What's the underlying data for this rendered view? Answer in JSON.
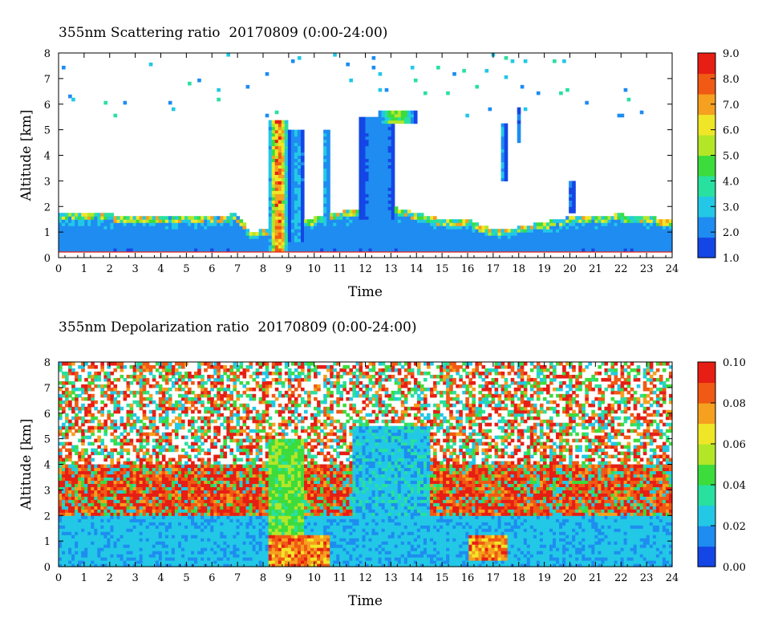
{
  "chart_data": [
    {
      "type": "heatmap",
      "title": "355nm Scattering ratio  20170809 (0:00-24:00)",
      "xlabel": "Time",
      "ylabel": "Altitude [km]",
      "xlim": [
        0,
        24
      ],
      "ylim": [
        0,
        8
      ],
      "x_ticks": [
        "0",
        "1",
        "2",
        "3",
        "4",
        "5",
        "6",
        "7",
        "8",
        "9",
        "10",
        "11",
        "12",
        "13",
        "14",
        "15",
        "16",
        "17",
        "18",
        "19",
        "20",
        "21",
        "22",
        "23",
        "24"
      ],
      "y_ticks": [
        "0",
        "1",
        "2",
        "3",
        "4",
        "5",
        "6",
        "7",
        "8"
      ],
      "colorbar": {
        "range": [
          1.0,
          9.0
        ],
        "ticks": [
          "1.0",
          "2.0",
          "3.0",
          "4.0",
          "5.0",
          "6.0",
          "7.0",
          "8.0",
          "9.0"
        ],
        "colors": [
          "#1446e6",
          "#1e8cf0",
          "#22c8e6",
          "#28e0a0",
          "#3cdc3c",
          "#b4e628",
          "#f0e628",
          "#f5a01e",
          "#f05a14",
          "#e61e14"
        ]
      },
      "features": {
        "boundary_layer_top_km": [
          [
            0,
            1.75
          ],
          [
            2,
            1.7
          ],
          [
            3,
            1.6
          ],
          [
            5,
            1.6
          ],
          [
            7,
            1.7
          ],
          [
            7.5,
            1.0
          ],
          [
            11,
            1.8
          ],
          [
            13,
            2.0
          ],
          [
            15,
            1.5
          ],
          [
            16,
            1.5
          ],
          [
            17,
            1.1
          ],
          [
            18,
            1.2
          ],
          [
            20,
            1.6
          ],
          [
            22,
            1.7
          ],
          [
            24,
            1.5
          ]
        ],
        "clouds": [
          {
            "t": [
              8.2,
              9.0
            ],
            "z": [
              0.3,
              5.4
            ],
            "peak": 8.5
          },
          {
            "t": [
              9.0,
              9.6
            ],
            "z": [
              0.6,
              5.0
            ],
            "peak": 3.0
          },
          {
            "t": [
              10.3,
              10.6
            ],
            "z": [
              1.0,
              5.0
            ],
            "peak": 3.0
          },
          {
            "t": [
              11.8,
              13.2
            ],
            "z": [
              1.5,
              5.5
            ],
            "peak": 2.5
          },
          {
            "t": [
              12.5,
              14.0
            ],
            "z": [
              5.3,
              5.8
            ],
            "peak": 6.0
          },
          {
            "t": [
              17.3,
              17.5
            ],
            "z": [
              3.0,
              5.2
            ],
            "peak": 3.0
          },
          {
            "t": [
              17.9,
              18.1
            ],
            "z": [
              4.5,
              5.9
            ],
            "peak": 2.0
          },
          {
            "t": [
              19.9,
              20.2
            ],
            "z": [
              1.8,
              3.0
            ],
            "peak": 2.0
          }
        ]
      }
    },
    {
      "type": "heatmap",
      "title": "355nm Depolarization ratio  20170809 (0:00-24:00)",
      "xlabel": "Time",
      "ylabel": "Altitude [km]",
      "xlim": [
        0,
        24
      ],
      "ylim": [
        0,
        8
      ],
      "x_ticks": [
        "0",
        "1",
        "2",
        "3",
        "4",
        "5",
        "6",
        "7",
        "8",
        "9",
        "10",
        "11",
        "12",
        "13",
        "14",
        "15",
        "16",
        "17",
        "18",
        "19",
        "20",
        "21",
        "22",
        "23",
        "24"
      ],
      "y_ticks": [
        "0",
        "1",
        "2",
        "3",
        "4",
        "5",
        "6",
        "7",
        "8"
      ],
      "colorbar": {
        "range": [
          0.0,
          0.1
        ],
        "ticks": [
          "0.00",
          "0.02",
          "0.04",
          "0.06",
          "0.08",
          "0.10"
        ],
        "colors": [
          "#1446e6",
          "#1e8cf0",
          "#22c8e6",
          "#28e0a0",
          "#3cdc3c",
          "#b4e628",
          "#f0e628",
          "#f5a01e",
          "#f05a14",
          "#e61e14"
        ]
      },
      "features": {
        "high_depol_regions": [
          {
            "t": [
              8.2,
              10.6
            ],
            "z": [
              0.0,
              1.2
            ],
            "peak": 0.085
          },
          {
            "t": [
              16.0,
              17.6
            ],
            "z": [
              0.3,
              1.3
            ],
            "peak": 0.085
          },
          {
            "t": [
              8.2,
              9.6
            ],
            "z": [
              1.2,
              5.0
            ],
            "peak": 0.05
          }
        ]
      }
    }
  ]
}
